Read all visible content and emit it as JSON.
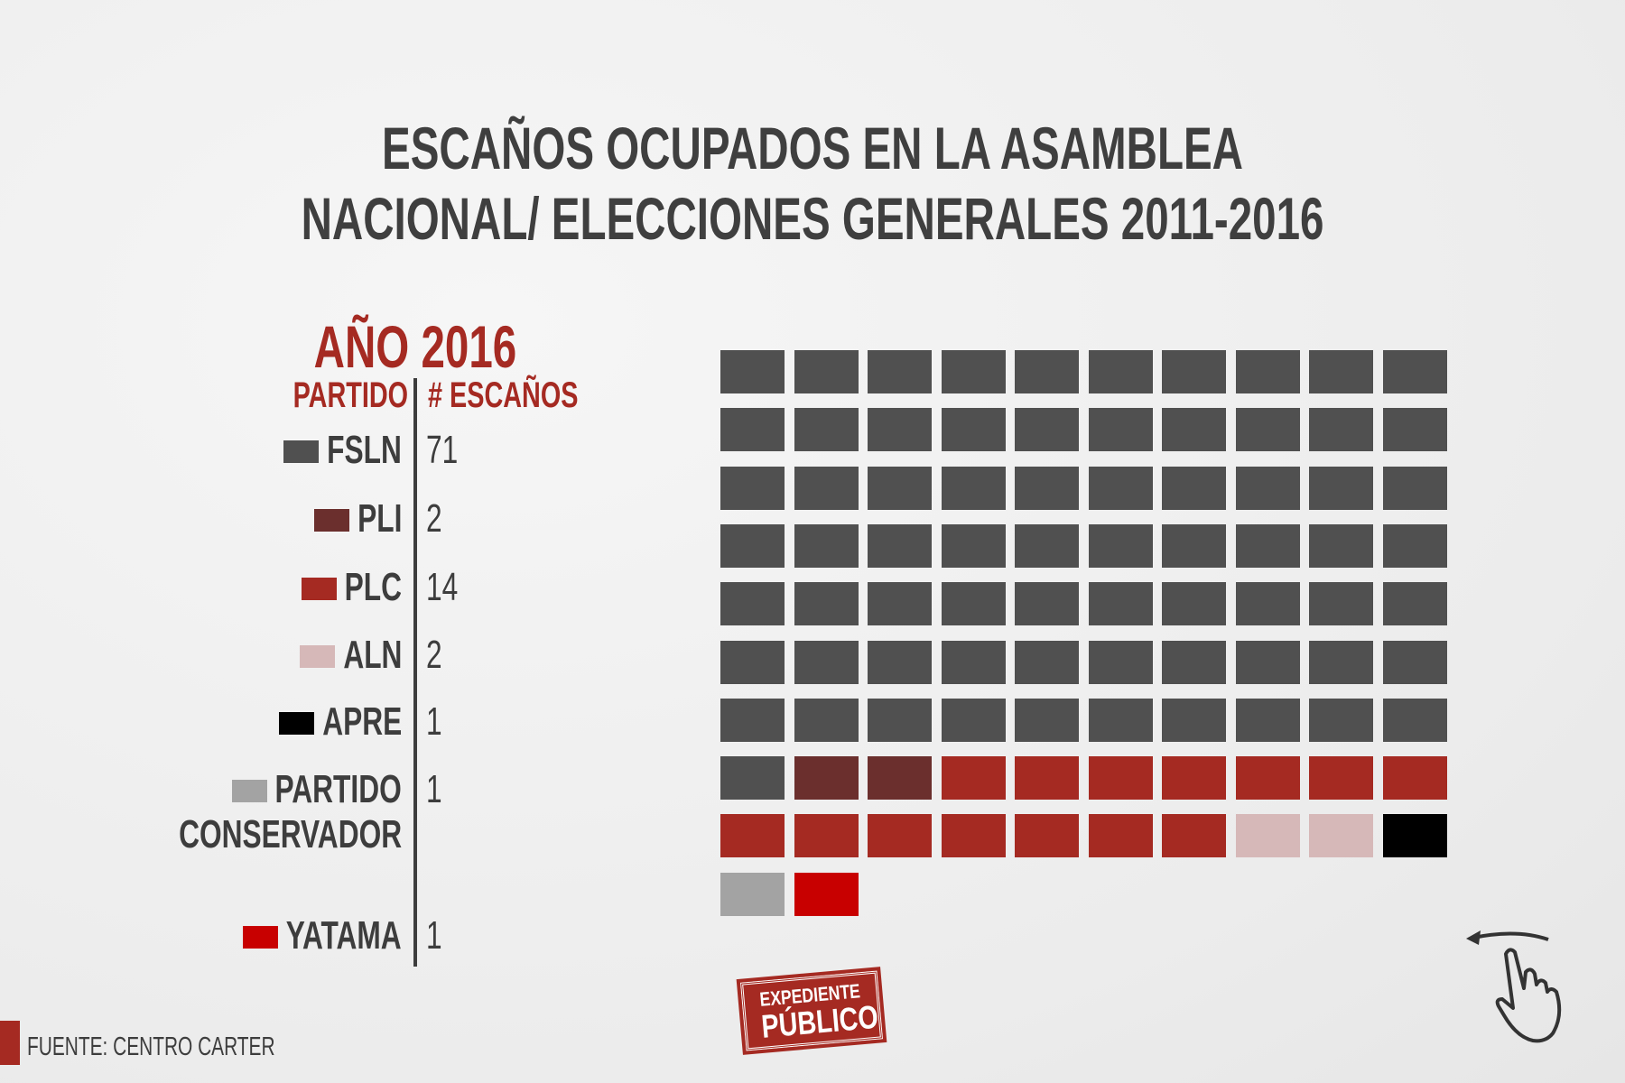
{
  "title": {
    "line1": "ESCAÑOS OCUPADOS EN LA ASAMBLEA",
    "line2": "NACIONAL/ ELECCIONES GENERALES 2011-2016"
  },
  "year_label": "AÑO 2016",
  "headers": {
    "party": "PARTIDO",
    "seats": "# ESCAÑOS"
  },
  "chart_data": {
    "type": "waffle",
    "title": "ESCAÑOS OCUPADOS EN LA ASAMBLEA NACIONAL/ ELECCIONES GENERALES 2011-2016",
    "subtitle": "AÑO 2016",
    "columns": 10,
    "series": [
      {
        "name": "FSLN",
        "label": "FSLN",
        "value": 71,
        "color": "#505050"
      },
      {
        "name": "PLI",
        "label": "PLI",
        "value": 2,
        "color": "#6b2f2d"
      },
      {
        "name": "PLC",
        "label": "PLC",
        "value": 14,
        "color": "#a52a22"
      },
      {
        "name": "ALN",
        "label": "ALN",
        "value": 2,
        "color": "#d6b8b8"
      },
      {
        "name": "APRE",
        "label": "APRE",
        "value": 1,
        "color": "#000000"
      },
      {
        "name": "PARTIDO CONSERVADOR",
        "label": "PARTIDO",
        "label2": "CONSERVADOR",
        "value": 1,
        "color": "#a3a3a3"
      },
      {
        "name": "YATAMA",
        "label": "YATAMA",
        "value": 1,
        "color": "#c80000"
      }
    ]
  },
  "source": "FUENTE: CENTRO CARTER",
  "logo": {
    "line1": "EXPEDIENTE",
    "line2": "PÚBLICO"
  },
  "colors": {
    "accent": "#a52a22",
    "text": "#3d3d3d"
  }
}
